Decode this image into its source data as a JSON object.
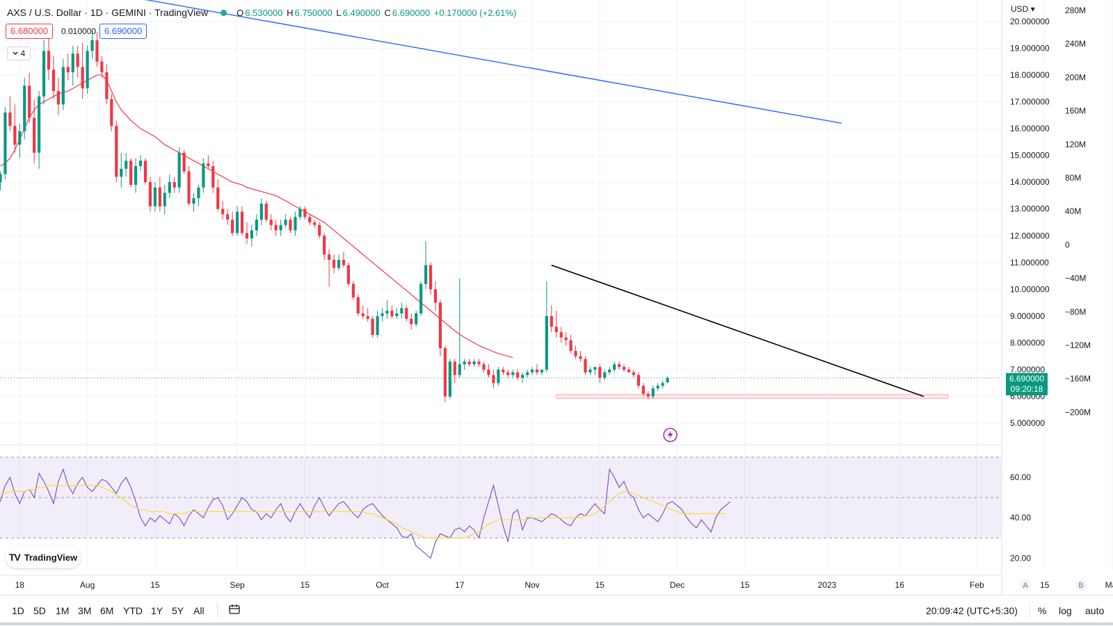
{
  "header": {
    "symbol": "AXS / U.S. Dollar · 1D · GEMINI · TradingView",
    "open_label": "O",
    "open": "6.530000",
    "high_label": "H",
    "high": "6.750000",
    "low_label": "L",
    "low": "6.490000",
    "close_label": "C",
    "close": "6.690000",
    "change": "+0.170000 (+2.61%)"
  },
  "trade": {
    "sell": "6.680000",
    "spread": "0.010000",
    "buy": "6.690000"
  },
  "indicator_count": "4",
  "currency": "USD",
  "last_price": {
    "price": "6.690000",
    "countdown": "09:20:18"
  },
  "colors": {
    "up": "#089981",
    "down": "#f23645",
    "ma": "#f23645",
    "trendline": "#000000",
    "blue_line": "#2962ff",
    "rsi": "#7e57c2",
    "rsi_ma": "#fdd835"
  },
  "chart_data": {
    "type": "candlestick",
    "x_axis": {
      "ticks": [
        "18",
        "Aug",
        "15",
        "Sep",
        "15",
        "Oct",
        "17",
        "Nov",
        "15",
        "Dec",
        "15",
        "2023",
        "16",
        "Feb",
        "15",
        "Mar"
      ],
      "scale_labels": [
        "A",
        "B"
      ]
    },
    "price_axis": {
      "ticks": [
        "20.000000",
        "19.000000",
        "18.000000",
        "17.000000",
        "16.000000",
        "15.000000",
        "14.000000",
        "13.000000",
        "12.000000",
        "11.000000",
        "10.000000",
        "9.000000",
        "8.000000",
        "7.000000",
        "6.000000",
        "5.000000"
      ],
      "range": [
        4.2,
        20.8
      ]
    },
    "volume_axis": {
      "ticks": [
        "280M",
        "240M",
        "200M",
        "160M",
        "120M",
        "80M",
        "40M",
        "0",
        "−40M",
        "−80M",
        "−120M",
        "−160M",
        "−200M"
      ]
    },
    "candles": [
      [
        14.0,
        14.4,
        13.7,
        14.3
      ],
      [
        14.3,
        16.8,
        14.1,
        16.6
      ],
      [
        16.6,
        17.2,
        15.9,
        16.1
      ],
      [
        16.1,
        16.9,
        15.1,
        15.4
      ],
      [
        15.4,
        16.2,
        14.9,
        15.9
      ],
      [
        15.9,
        17.9,
        15.6,
        17.6
      ],
      [
        17.6,
        18.1,
        16.2,
        16.4
      ],
      [
        16.4,
        17.1,
        14.7,
        15.1
      ],
      [
        15.1,
        17.4,
        14.5,
        17.2
      ],
      [
        17.2,
        19.3,
        16.9,
        18.9
      ],
      [
        18.9,
        19.6,
        17.8,
        18.2
      ],
      [
        18.2,
        18.7,
        17.1,
        17.4
      ],
      [
        17.4,
        17.9,
        16.5,
        16.9
      ],
      [
        16.9,
        18.6,
        16.7,
        18.3
      ],
      [
        18.3,
        18.8,
        17.8,
        18.1
      ],
      [
        18.1,
        19.1,
        17.6,
        18.8
      ],
      [
        18.8,
        19.1,
        17.9,
        18.3
      ],
      [
        18.3,
        19.2,
        17.1,
        17.5
      ],
      [
        17.5,
        19.1,
        17.3,
        18.9
      ],
      [
        18.9,
        19.6,
        18.6,
        19.3
      ],
      [
        19.3,
        19.6,
        18.3,
        18.5
      ],
      [
        18.5,
        18.7,
        17.9,
        18.1
      ],
      [
        18.1,
        18.4,
        16.9,
        17.1
      ],
      [
        17.1,
        17.3,
        15.9,
        16.1
      ],
      [
        16.1,
        16.3,
        14.0,
        14.2
      ],
      [
        14.2,
        15.1,
        13.8,
        14.5
      ],
      [
        14.5,
        15.1,
        14.2,
        14.8
      ],
      [
        14.8,
        14.9,
        13.8,
        13.9
      ],
      [
        13.9,
        14.9,
        13.6,
        14.6
      ],
      [
        14.6,
        15.0,
        14.4,
        14.8
      ],
      [
        14.8,
        14.9,
        13.9,
        14.0
      ],
      [
        14.0,
        14.2,
        12.9,
        13.1
      ],
      [
        13.1,
        14.0,
        12.9,
        13.8
      ],
      [
        13.8,
        14.2,
        12.9,
        13.1
      ],
      [
        13.1,
        13.9,
        12.8,
        13.6
      ],
      [
        13.6,
        14.3,
        13.4,
        14.0
      ],
      [
        14.0,
        14.2,
        13.6,
        13.8
      ],
      [
        13.8,
        15.3,
        13.6,
        15.1
      ],
      [
        15.1,
        15.2,
        14.3,
        14.4
      ],
      [
        14.4,
        14.6,
        13.1,
        13.2
      ],
      [
        13.2,
        13.6,
        12.9,
        13.4
      ],
      [
        13.4,
        13.9,
        13.1,
        13.8
      ],
      [
        13.8,
        14.9,
        13.6,
        14.7
      ],
      [
        14.7,
        15.0,
        14.5,
        14.6
      ],
      [
        14.6,
        14.8,
        13.6,
        13.8
      ],
      [
        13.8,
        14.1,
        12.9,
        13.0
      ],
      [
        13.0,
        13.3,
        12.6,
        12.8
      ],
      [
        12.8,
        13.0,
        12.4,
        12.6
      ],
      [
        12.6,
        12.9,
        12.0,
        12.1
      ],
      [
        12.1,
        13.1,
        12.0,
        12.9
      ],
      [
        12.9,
        13.1,
        12.0,
        12.1
      ],
      [
        12.1,
        12.5,
        11.7,
        11.9
      ],
      [
        11.9,
        12.4,
        11.6,
        12.2
      ],
      [
        12.2,
        12.8,
        12.0,
        12.6
      ],
      [
        12.6,
        13.4,
        12.4,
        13.2
      ],
      [
        13.2,
        13.3,
        12.5,
        12.6
      ],
      [
        12.6,
        12.8,
        12.2,
        12.4
      ],
      [
        12.4,
        12.6,
        12.0,
        12.2
      ],
      [
        12.2,
        12.6,
        12.0,
        12.4
      ],
      [
        12.4,
        12.8,
        12.3,
        12.6
      ],
      [
        12.6,
        12.7,
        12.1,
        12.2
      ],
      [
        12.2,
        12.9,
        12.0,
        12.7
      ],
      [
        12.7,
        13.1,
        12.6,
        13.0
      ],
      [
        13.0,
        13.1,
        12.6,
        12.7
      ],
      [
        12.7,
        12.8,
        12.4,
        12.5
      ],
      [
        12.5,
        12.6,
        12.3,
        12.4
      ],
      [
        12.4,
        12.5,
        11.9,
        12.0
      ],
      [
        12.0,
        12.1,
        11.1,
        11.3
      ],
      [
        11.3,
        11.5,
        10.1,
        11.1
      ],
      [
        11.1,
        11.3,
        10.6,
        10.8
      ],
      [
        10.8,
        11.3,
        10.7,
        11.1
      ],
      [
        11.1,
        11.4,
        10.8,
        10.9
      ],
      [
        10.9,
        11.0,
        10.1,
        10.2
      ],
      [
        10.2,
        10.3,
        9.6,
        9.7
      ],
      [
        9.7,
        9.8,
        9.0,
        9.1
      ],
      [
        9.1,
        9.4,
        8.9,
        9.0
      ],
      [
        9.0,
        9.3,
        8.8,
        8.9
      ],
      [
        8.9,
        9.0,
        8.2,
        8.3
      ],
      [
        8.3,
        9.2,
        8.2,
        9.0
      ],
      [
        9.0,
        9.3,
        8.8,
        9.1
      ],
      [
        9.1,
        9.6,
        8.9,
        9.2
      ],
      [
        9.2,
        9.4,
        8.9,
        9.0
      ],
      [
        9.0,
        9.3,
        8.9,
        9.1
      ],
      [
        9.1,
        9.5,
        8.9,
        9.3
      ],
      [
        9.3,
        9.4,
        8.8,
        8.9
      ],
      [
        8.9,
        9.1,
        8.5,
        8.7
      ],
      [
        8.7,
        9.2,
        8.6,
        9.1
      ],
      [
        9.1,
        10.3,
        9.0,
        10.2
      ],
      [
        10.2,
        11.8,
        10.0,
        10.9
      ],
      [
        10.9,
        11.0,
        9.8,
        10.0
      ],
      [
        10.0,
        10.3,
        9.2,
        9.5
      ],
      [
        9.5,
        9.6,
        7.5,
        7.8
      ],
      [
        7.8,
        7.9,
        5.8,
        6.0
      ],
      [
        6.0,
        7.4,
        5.9,
        7.3
      ],
      [
        7.3,
        7.4,
        6.5,
        6.8
      ],
      [
        6.8,
        10.4,
        6.7,
        7.2
      ],
      [
        7.2,
        7.4,
        7.0,
        7.3
      ],
      [
        7.3,
        7.4,
        7.1,
        7.2
      ],
      [
        7.2,
        7.4,
        7.1,
        7.3
      ],
      [
        7.3,
        7.4,
        7.1,
        7.2
      ],
      [
        7.2,
        7.3,
        6.9,
        7.0
      ],
      [
        7.0,
        7.2,
        6.7,
        6.8
      ],
      [
        6.8,
        7.0,
        6.3,
        6.5
      ],
      [
        6.5,
        7.1,
        6.4,
        7.0
      ],
      [
        7.0,
        7.1,
        6.8,
        6.9
      ],
      [
        6.9,
        7.0,
        6.7,
        6.8
      ],
      [
        6.8,
        7.0,
        6.7,
        6.9
      ],
      [
        6.9,
        7.0,
        6.6,
        6.7
      ],
      [
        6.7,
        6.9,
        6.5,
        6.8
      ],
      [
        6.8,
        7.0,
        6.7,
        6.9
      ],
      [
        6.9,
        7.1,
        6.8,
        7.0
      ],
      [
        7.0,
        7.2,
        6.8,
        6.9
      ],
      [
        6.9,
        7.0,
        6.8,
        7.0
      ],
      [
        7.0,
        10.3,
        6.9,
        9.0
      ],
      [
        9.0,
        9.4,
        8.4,
        8.6
      ],
      [
        8.6,
        9.2,
        8.2,
        8.4
      ],
      [
        8.4,
        8.6,
        8.0,
        8.2
      ],
      [
        8.2,
        8.4,
        7.9,
        8.1
      ],
      [
        8.1,
        8.3,
        7.6,
        7.7
      ],
      [
        7.7,
        7.9,
        7.4,
        7.5
      ],
      [
        7.5,
        7.7,
        7.3,
        7.4
      ],
      [
        7.4,
        7.5,
        6.8,
        6.9
      ],
      [
        6.9,
        7.1,
        6.8,
        7.0
      ],
      [
        7.0,
        7.1,
        6.8,
        7.1
      ],
      [
        7.1,
        7.2,
        6.5,
        6.7
      ],
      [
        6.7,
        7.0,
        6.6,
        6.9
      ],
      [
        6.9,
        7.1,
        6.8,
        7.0
      ],
      [
        7.0,
        7.3,
        6.9,
        7.2
      ],
      [
        7.2,
        7.3,
        7.0,
        7.1
      ],
      [
        7.1,
        7.2,
        6.9,
        7.0
      ],
      [
        7.0,
        7.1,
        6.9,
        6.9
      ],
      [
        6.9,
        7.0,
        6.7,
        6.8
      ],
      [
        6.8,
        6.9,
        6.3,
        6.4
      ],
      [
        6.4,
        6.5,
        6.0,
        6.1
      ],
      [
        6.1,
        6.2,
        5.9,
        6.0
      ],
      [
        6.0,
        6.4,
        5.9,
        6.3
      ],
      [
        6.3,
        6.5,
        6.2,
        6.4
      ],
      [
        6.4,
        6.6,
        6.3,
        6.5
      ],
      [
        6.53,
        6.75,
        6.49,
        6.69
      ]
    ],
    "ma": [
      14.6,
      14.7,
      14.9,
      15.2,
      15.6,
      16.0,
      16.4,
      16.7,
      16.9,
      17.0,
      17.1,
      17.2,
      17.3,
      17.35,
      17.4,
      17.5,
      17.6,
      17.7,
      17.8,
      17.9,
      18.0,
      18.0,
      17.8,
      17.4,
      17.0,
      16.7,
      16.5,
      16.3,
      16.15,
      16.0,
      15.9,
      15.8,
      15.7,
      15.55,
      15.4,
      15.3,
      15.2,
      15.1,
      15.0,
      14.9,
      14.8,
      14.7,
      14.6,
      14.5,
      14.4,
      14.3,
      14.2,
      14.1,
      14.0,
      13.95,
      13.9,
      13.8,
      13.75,
      13.7,
      13.65,
      13.6,
      13.55,
      13.5,
      13.4,
      13.3,
      13.2,
      13.1,
      13.0,
      12.9,
      12.8,
      12.7,
      12.6,
      12.5,
      12.35,
      12.2,
      12.05,
      11.9,
      11.75,
      11.6,
      11.45,
      11.3,
      11.15,
      11.0,
      10.85,
      10.7,
      10.55,
      10.4,
      10.25,
      10.1,
      9.95,
      9.8,
      9.65,
      9.5,
      9.35,
      9.2,
      9.05,
      8.9,
      8.75,
      8.6,
      8.45,
      8.32,
      8.2,
      8.1,
      8.0,
      7.9,
      7.82,
      7.75,
      7.67,
      7.6,
      7.55,
      7.5,
      7.45
    ],
    "ma_start_index": 0,
    "trendline": {
      "from": [
        "Nov 4",
        10.9
      ],
      "to": [
        "Jan 20",
        6.0
      ]
    },
    "support_zone": {
      "from": "Nov 5",
      "to": "Jan 25",
      "value": 6.0
    },
    "blue_line": {
      "from": [
        "Jul 31",
        21.2
      ],
      "to": [
        "Jan 3",
        16.2
      ]
    },
    "rsi": {
      "ticks": [
        "60.00",
        "40.00",
        "20.00"
      ],
      "range": [
        17,
        70
      ],
      "band": [
        30,
        70
      ],
      "mid": 50,
      "values": [
        48,
        56,
        60,
        52,
        47,
        53,
        54,
        50,
        62,
        58,
        53,
        47,
        58,
        64,
        56,
        52,
        57,
        60,
        55,
        53,
        56,
        59,
        58,
        55,
        52,
        57,
        60,
        55,
        48,
        40,
        36,
        40,
        38,
        41,
        39,
        37,
        42,
        40,
        36,
        41,
        44,
        42,
        40,
        45,
        49,
        50,
        46,
        39,
        42,
        46,
        50,
        48,
        44,
        43,
        39,
        42,
        40,
        44,
        47,
        41,
        38,
        43,
        47,
        43,
        40,
        46,
        50,
        45,
        41,
        44,
        47,
        48,
        45,
        42,
        40,
        44,
        46,
        47,
        44,
        41,
        39,
        37,
        35,
        31,
        30,
        32,
        26,
        24,
        22,
        20,
        28,
        32,
        31,
        30,
        34,
        35,
        33,
        36,
        34,
        30,
        40,
        48,
        56,
        46,
        36,
        28,
        42,
        44,
        34,
        40,
        40,
        39,
        38,
        40,
        42,
        41,
        39,
        37,
        36,
        40,
        42,
        41,
        44,
        47,
        44,
        42,
        64,
        60,
        55,
        58,
        52,
        50,
        44,
        40,
        42,
        40,
        38,
        42,
        47,
        48,
        46,
        44,
        40,
        37,
        35,
        39,
        36,
        33,
        40,
        44,
        46,
        48
      ]
    },
    "rsi_ma": [
      52,
      52,
      53,
      53,
      53,
      53,
      54,
      54,
      55,
      55,
      56,
      56,
      56,
      56,
      56,
      56,
      56,
      56,
      56,
      56,
      56,
      55,
      54,
      53,
      51,
      50,
      48,
      46,
      45,
      44,
      44,
      43,
      43,
      43,
      43,
      42,
      42,
      42,
      42,
      43,
      43,
      43,
      43,
      43,
      43,
      43,
      43,
      43,
      43,
      43,
      43,
      43,
      43,
      43,
      43,
      43,
      43,
      43,
      43,
      43,
      43,
      43,
      43,
      43,
      43,
      43,
      43,
      43,
      43,
      43,
      43,
      43,
      43,
      43,
      43,
      43,
      42,
      42,
      41,
      40,
      39,
      38,
      37,
      35,
      34,
      33,
      32,
      31,
      30,
      30,
      30,
      30,
      30,
      30,
      30,
      30,
      30,
      31,
      32,
      33,
      35,
      37,
      38,
      39,
      39,
      39,
      39,
      39,
      39,
      39,
      40,
      40,
      40,
      40,
      40,
      40,
      40,
      40,
      40,
      40,
      40,
      41,
      41,
      42,
      44,
      46,
      48,
      50,
      52,
      53,
      53,
      52,
      51,
      50,
      49,
      48,
      47,
      46,
      45,
      44,
      43,
      42,
      42,
      42,
      42,
      42,
      42,
      42,
      42,
      42,
      42
    ]
  },
  "logo": {
    "text": "TradingView"
  },
  "bottom": {
    "ranges": [
      "1D",
      "5D",
      "1M",
      "3M",
      "6M",
      "YTD",
      "1Y",
      "5Y",
      "All"
    ],
    "clock": "20:09:42 (UTC+5:30)",
    "pct": "%",
    "log": "log",
    "auto": "auto"
  }
}
